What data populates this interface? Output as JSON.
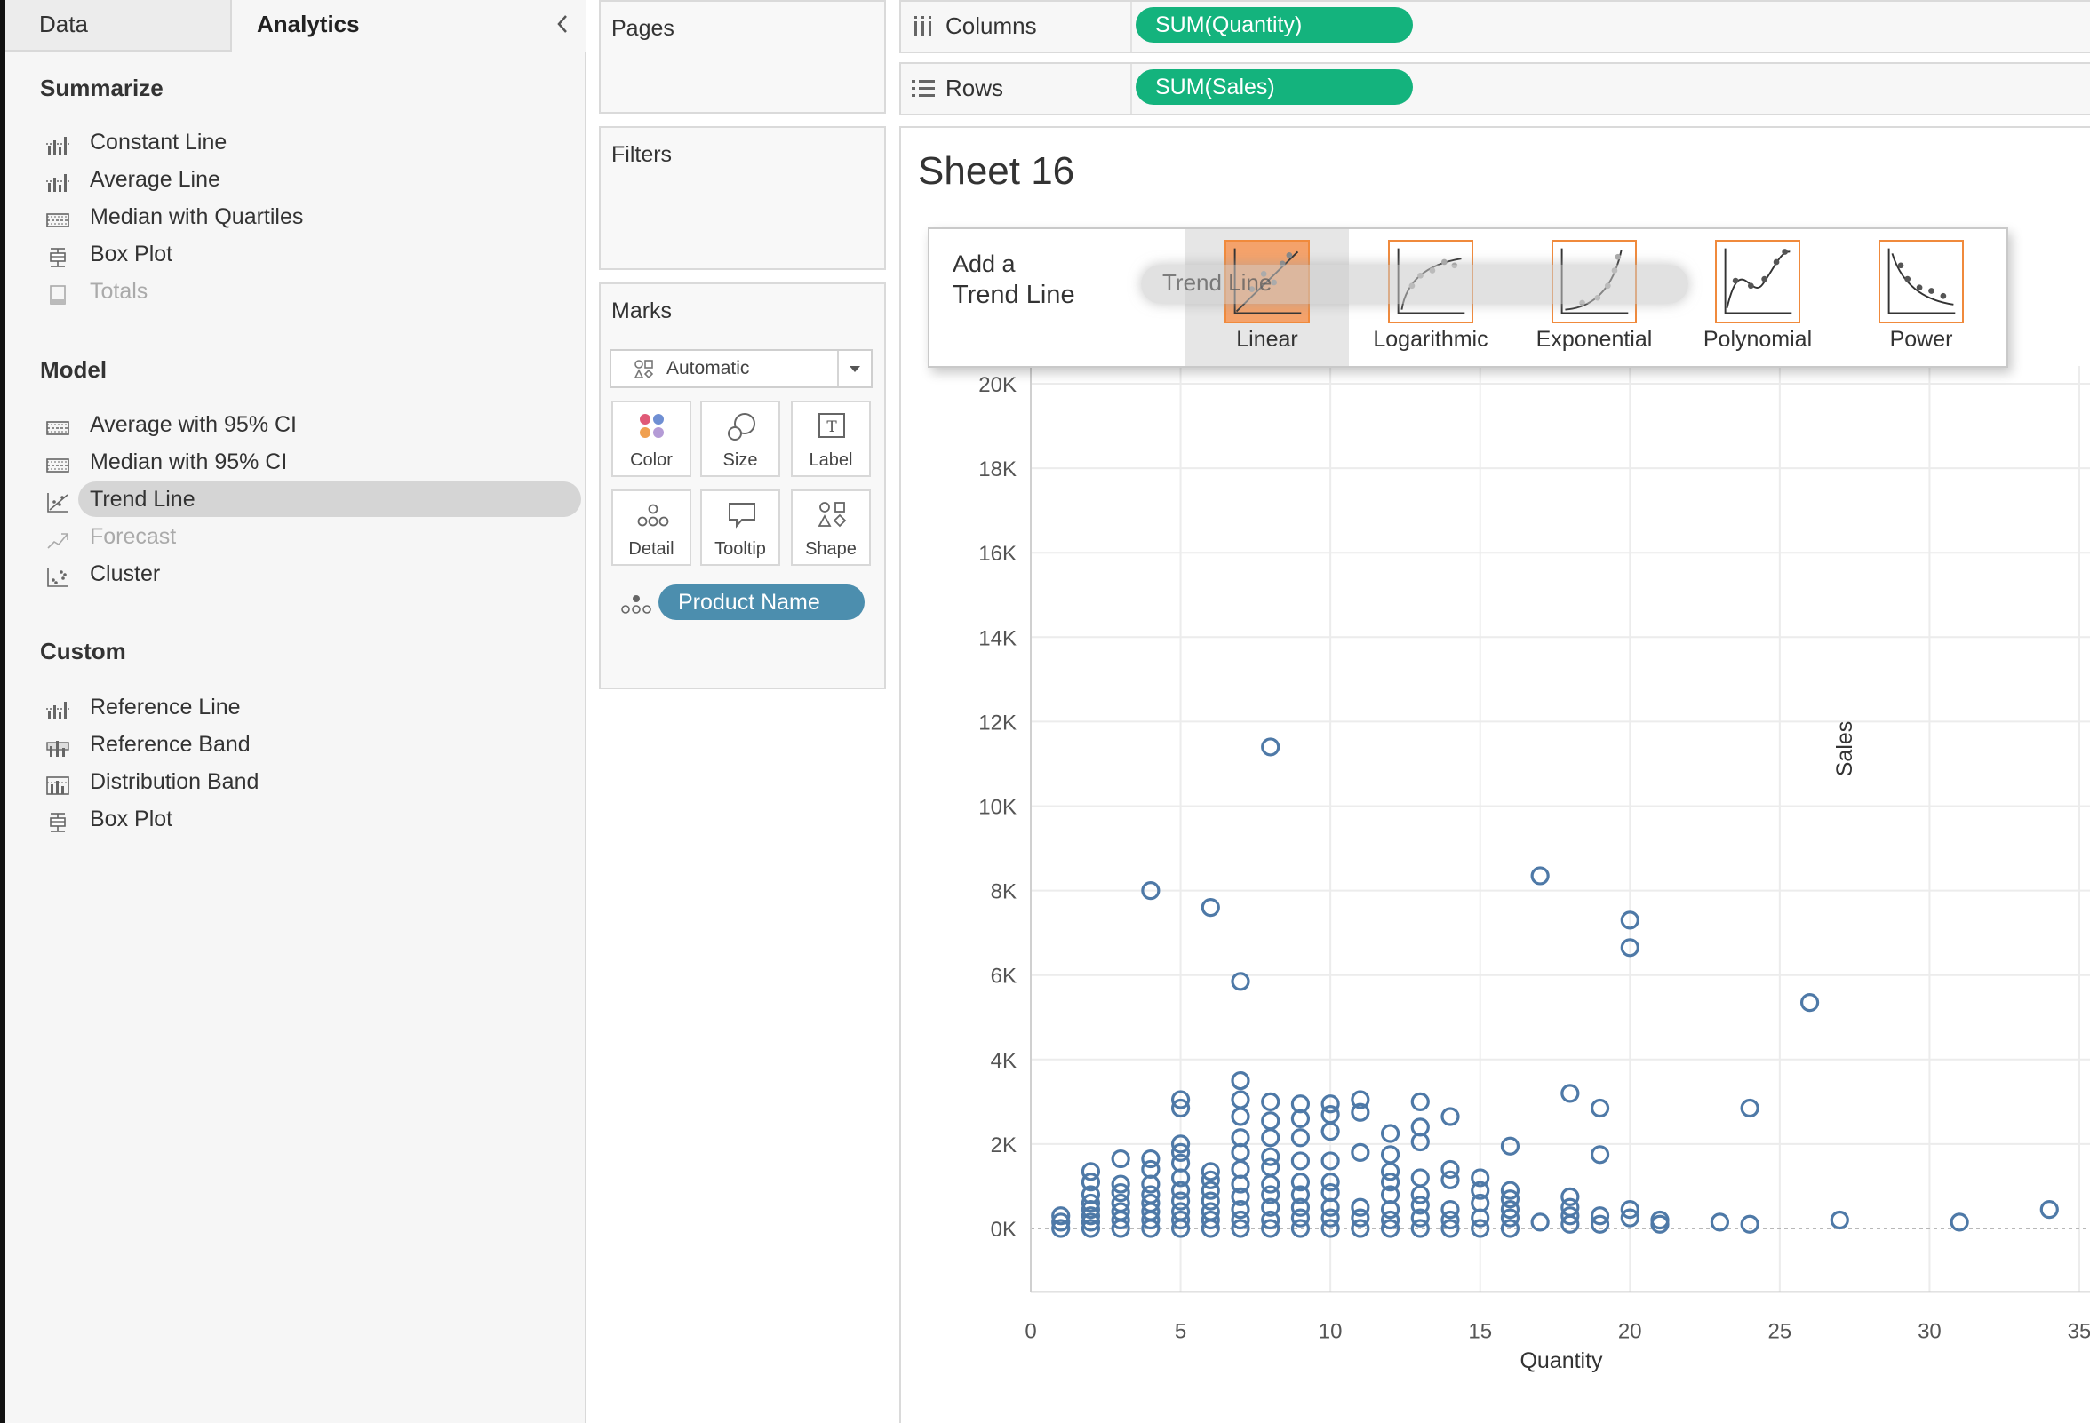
{
  "tabs": {
    "data": "Data",
    "analytics": "Analytics"
  },
  "analytics": {
    "summarize_title": "Summarize",
    "summarize": [
      {
        "label": "Constant Line",
        "icon": "bar-line-icon",
        "enabled": true
      },
      {
        "label": "Average Line",
        "icon": "bar-line-icon",
        "enabled": true
      },
      {
        "label": "Median with Quartiles",
        "icon": "band-icon",
        "enabled": true
      },
      {
        "label": "Box Plot",
        "icon": "box-plot-icon",
        "enabled": true
      },
      {
        "label": "Totals",
        "icon": "totals-icon",
        "enabled": false
      }
    ],
    "model_title": "Model",
    "model": [
      {
        "label": "Average with 95% CI",
        "icon": "band-icon",
        "enabled": true
      },
      {
        "label": "Median with 95% CI",
        "icon": "band-icon",
        "enabled": true
      },
      {
        "label": "Trend Line",
        "icon": "trend-icon",
        "enabled": true,
        "selected": true
      },
      {
        "label": "Forecast",
        "icon": "forecast-icon",
        "enabled": false
      },
      {
        "label": "Cluster",
        "icon": "cluster-icon",
        "enabled": true
      }
    ],
    "custom_title": "Custom",
    "custom": [
      {
        "label": "Reference Line",
        "icon": "bar-line-icon",
        "enabled": true
      },
      {
        "label": "Reference Band",
        "icon": "ref-band-icon",
        "enabled": true
      },
      {
        "label": "Distribution Band",
        "icon": "dist-band-icon",
        "enabled": true
      },
      {
        "label": "Box Plot",
        "icon": "box-plot-icon",
        "enabled": true
      }
    ]
  },
  "pages": {
    "title": "Pages"
  },
  "filters": {
    "title": "Filters"
  },
  "marks": {
    "title": "Marks",
    "type_value": "Automatic",
    "buttons": {
      "color": "Color",
      "size": "Size",
      "label": "Label",
      "detail": "Detail",
      "tooltip": "Tooltip",
      "shape": "Shape"
    },
    "detail_pill": "Product Name"
  },
  "shelves": {
    "columns_label": "Columns",
    "columns_pill": "SUM(Quantity)",
    "rows_label": "Rows",
    "rows_pill": "SUM(Sales)"
  },
  "sheet": {
    "title": "Sheet 16"
  },
  "trend_popup": {
    "title_line1": "Add a",
    "title_line2": "Trend Line",
    "options": [
      "Linear",
      "Logarithmic",
      "Exponential",
      "Polynomial",
      "Power"
    ],
    "active": "Linear",
    "drag_label": "Trend Line"
  },
  "colors": {
    "accent_green": "#14b37d",
    "pill_blue": "#4c8eae",
    "mark_blue": "#4e79a7",
    "trend_orange": "#f08a3c"
  },
  "chart_data": {
    "type": "scatter",
    "xlabel": "Quantity",
    "ylabel": "Sales",
    "xlim": [
      0,
      35
    ],
    "ylim": [
      -1500,
      20000
    ],
    "x_ticks": [
      0,
      5,
      10,
      15,
      20,
      25,
      30,
      35
    ],
    "y_ticks": [
      0,
      2000,
      4000,
      6000,
      8000,
      10000,
      12000,
      14000,
      16000,
      18000,
      20000
    ],
    "y_tick_labels": [
      "0K",
      "2K",
      "4K",
      "6K",
      "8K",
      "10K",
      "12K",
      "14K",
      "16K",
      "18K",
      "20K"
    ],
    "points": [
      [
        1,
        0
      ],
      [
        1,
        150
      ],
      [
        1,
        300
      ],
      [
        2,
        0
      ],
      [
        2,
        150
      ],
      [
        2,
        300
      ],
      [
        2,
        450
      ],
      [
        2,
        600
      ],
      [
        2,
        800
      ],
      [
        2,
        1100
      ],
      [
        2,
        1350
      ],
      [
        3,
        0
      ],
      [
        3,
        200
      ],
      [
        3,
        400
      ],
      [
        3,
        600
      ],
      [
        3,
        850
      ],
      [
        3,
        1050
      ],
      [
        3,
        1650
      ],
      [
        4,
        0
      ],
      [
        4,
        200
      ],
      [
        4,
        400
      ],
      [
        4,
        600
      ],
      [
        4,
        800
      ],
      [
        4,
        1050
      ],
      [
        4,
        1400
      ],
      [
        4,
        1650
      ],
      [
        4,
        8000
      ],
      [
        5,
        0
      ],
      [
        5,
        200
      ],
      [
        5,
        400
      ],
      [
        5,
        650
      ],
      [
        5,
        900
      ],
      [
        5,
        1200
      ],
      [
        5,
        1550
      ],
      [
        5,
        1800
      ],
      [
        5,
        2000
      ],
      [
        5,
        2850
      ],
      [
        5,
        3050
      ],
      [
        6,
        0
      ],
      [
        6,
        200
      ],
      [
        6,
        400
      ],
      [
        6,
        650
      ],
      [
        6,
        900
      ],
      [
        6,
        1150
      ],
      [
        6,
        1350
      ],
      [
        6,
        7600
      ],
      [
        7,
        0
      ],
      [
        7,
        200
      ],
      [
        7,
        450
      ],
      [
        7,
        750
      ],
      [
        7,
        1050
      ],
      [
        7,
        1400
      ],
      [
        7,
        1800
      ],
      [
        7,
        2150
      ],
      [
        7,
        2650
      ],
      [
        7,
        3050
      ],
      [
        7,
        3500
      ],
      [
        7,
        5850
      ],
      [
        8,
        0
      ],
      [
        8,
        200
      ],
      [
        8,
        500
      ],
      [
        8,
        800
      ],
      [
        8,
        1050
      ],
      [
        8,
        1450
      ],
      [
        8,
        1700
      ],
      [
        8,
        2150
      ],
      [
        8,
        2550
      ],
      [
        8,
        3000
      ],
      [
        8,
        11400
      ],
      [
        9,
        0
      ],
      [
        9,
        250
      ],
      [
        9,
        500
      ],
      [
        9,
        800
      ],
      [
        9,
        1100
      ],
      [
        9,
        1600
      ],
      [
        9,
        2150
      ],
      [
        9,
        2600
      ],
      [
        9,
        2950
      ],
      [
        10,
        0
      ],
      [
        10,
        250
      ],
      [
        10,
        500
      ],
      [
        10,
        850
      ],
      [
        10,
        1100
      ],
      [
        10,
        1600
      ],
      [
        10,
        2300
      ],
      [
        10,
        2700
      ],
      [
        10,
        2950
      ],
      [
        11,
        0
      ],
      [
        11,
        250
      ],
      [
        11,
        500
      ],
      [
        11,
        1800
      ],
      [
        11,
        2750
      ],
      [
        11,
        3050
      ],
      [
        12,
        0
      ],
      [
        12,
        200
      ],
      [
        12,
        450
      ],
      [
        12,
        800
      ],
      [
        12,
        1100
      ],
      [
        12,
        1350
      ],
      [
        12,
        1750
      ],
      [
        12,
        2250
      ],
      [
        13,
        0
      ],
      [
        13,
        250
      ],
      [
        13,
        550
      ],
      [
        13,
        800
      ],
      [
        13,
        1200
      ],
      [
        13,
        2050
      ],
      [
        13,
        2400
      ],
      [
        13,
        3000
      ],
      [
        14,
        0
      ],
      [
        14,
        200
      ],
      [
        14,
        450
      ],
      [
        14,
        1150
      ],
      [
        14,
        1400
      ],
      [
        14,
        2650
      ],
      [
        15,
        0
      ],
      [
        15,
        250
      ],
      [
        15,
        600
      ],
      [
        15,
        900
      ],
      [
        15,
        1200
      ],
      [
        16,
        0
      ],
      [
        16,
        250
      ],
      [
        16,
        450
      ],
      [
        16,
        700
      ],
      [
        16,
        900
      ],
      [
        16,
        1950
      ],
      [
        17,
        150
      ],
      [
        17,
        8350
      ],
      [
        18,
        100
      ],
      [
        18,
        300
      ],
      [
        18,
        500
      ],
      [
        18,
        750
      ],
      [
        18,
        3200
      ],
      [
        19,
        100
      ],
      [
        19,
        300
      ],
      [
        19,
        1750
      ],
      [
        19,
        2850
      ],
      [
        20,
        250
      ],
      [
        20,
        450
      ],
      [
        20,
        6650
      ],
      [
        20,
        7300
      ],
      [
        21,
        100
      ],
      [
        21,
        200
      ],
      [
        23,
        150
      ],
      [
        24,
        100
      ],
      [
        24,
        2850
      ],
      [
        26,
        5350
      ],
      [
        27,
        200
      ],
      [
        31,
        150
      ],
      [
        34,
        450
      ]
    ]
  }
}
